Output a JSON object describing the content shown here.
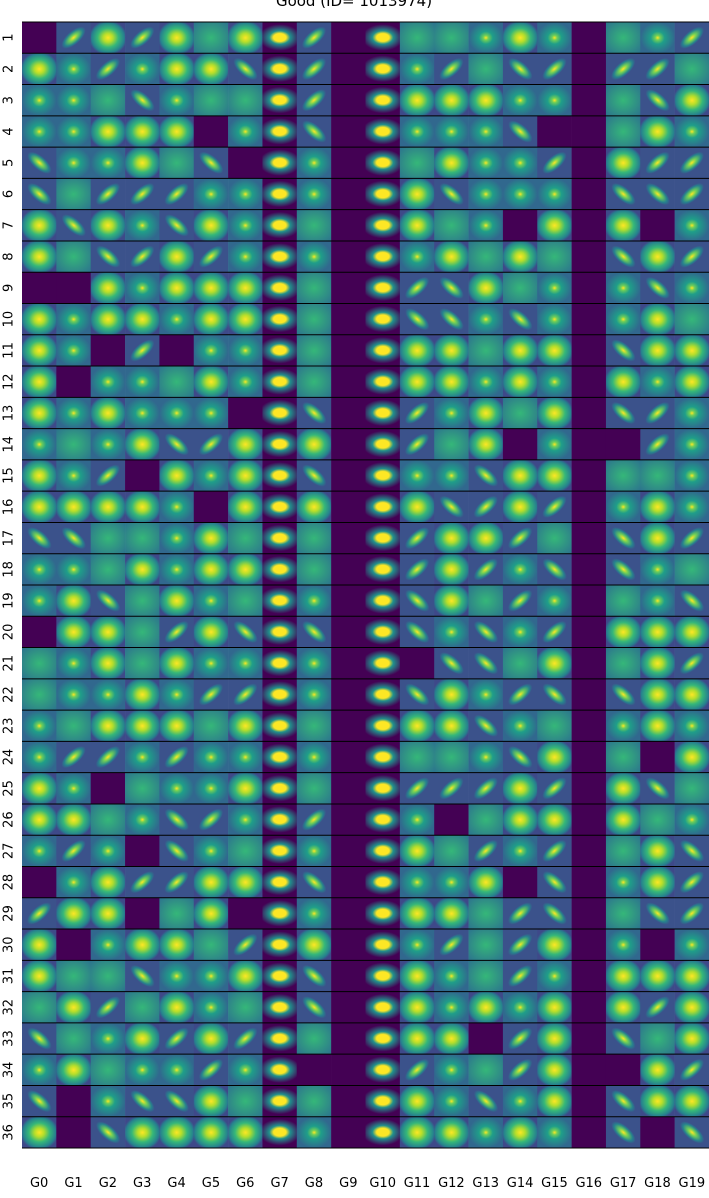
{
  "title": "Good (ID= 1013974)",
  "rows": [
    "1",
    "2",
    "3",
    "4",
    "5",
    "6",
    "7",
    "8",
    "9",
    "10",
    "11",
    "12",
    "13",
    "14",
    "15",
    "16",
    "17",
    "18",
    "19",
    "20",
    "21",
    "22",
    "23",
    "24",
    "25",
    "26",
    "27",
    "28",
    "29",
    "30",
    "31",
    "32",
    "33",
    "34",
    "35",
    "36"
  ],
  "columns": [
    "G0",
    "G1",
    "G2",
    "G3",
    "G4",
    "G5",
    "G6",
    "G7",
    "G8",
    "G9",
    "G10",
    "G11",
    "G12",
    "G13",
    "G14",
    "G15",
    "G16",
    "G17",
    "G18",
    "G19"
  ]
}
